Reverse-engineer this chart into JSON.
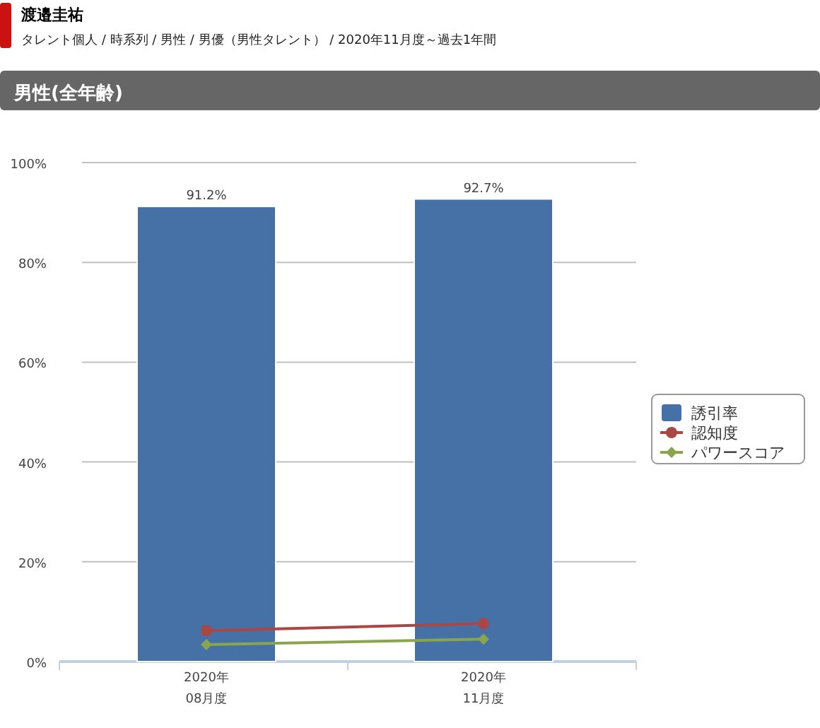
{
  "chart_data": {
    "type": "bar",
    "title": "渡邉圭祐",
    "subtitle": "タレント個人 / 時系列 / 男性 / 男優（男性タレント） / 2020年11月度～過去1年間",
    "annotations": [
      "男性(全年齢)"
    ],
    "categories": [
      "2020年\n08月度",
      "2020年\n11月度"
    ],
    "series": [
      {
        "name": "誘引率",
        "color": "#4571a7",
        "values": [
          91.2,
          92.7
        ],
        "value_labels": [
          "91.2%",
          "92.7%"
        ]
      },
      {
        "name": "認知度",
        "type": "line",
        "color": "#aa4643",
        "marker": "circle",
        "values": [
          6.2,
          7.6
        ]
      },
      {
        "name": "パワースコア",
        "type": "line",
        "color": "#89a54e",
        "marker": "diamond",
        "values": [
          3.4,
          4.5
        ]
      }
    ],
    "ylim": [
      0,
      100
    ],
    "yticks": [
      {
        "value": 0,
        "label": "0%"
      },
      {
        "value": 20,
        "label": "20%"
      },
      {
        "value": 40,
        "label": "40%"
      },
      {
        "value": 60,
        "label": "60%"
      },
      {
        "value": 80,
        "label": "80%"
      },
      {
        "value": 100,
        "label": "100%"
      }
    ],
    "grid": "y",
    "legend": "right"
  }
}
